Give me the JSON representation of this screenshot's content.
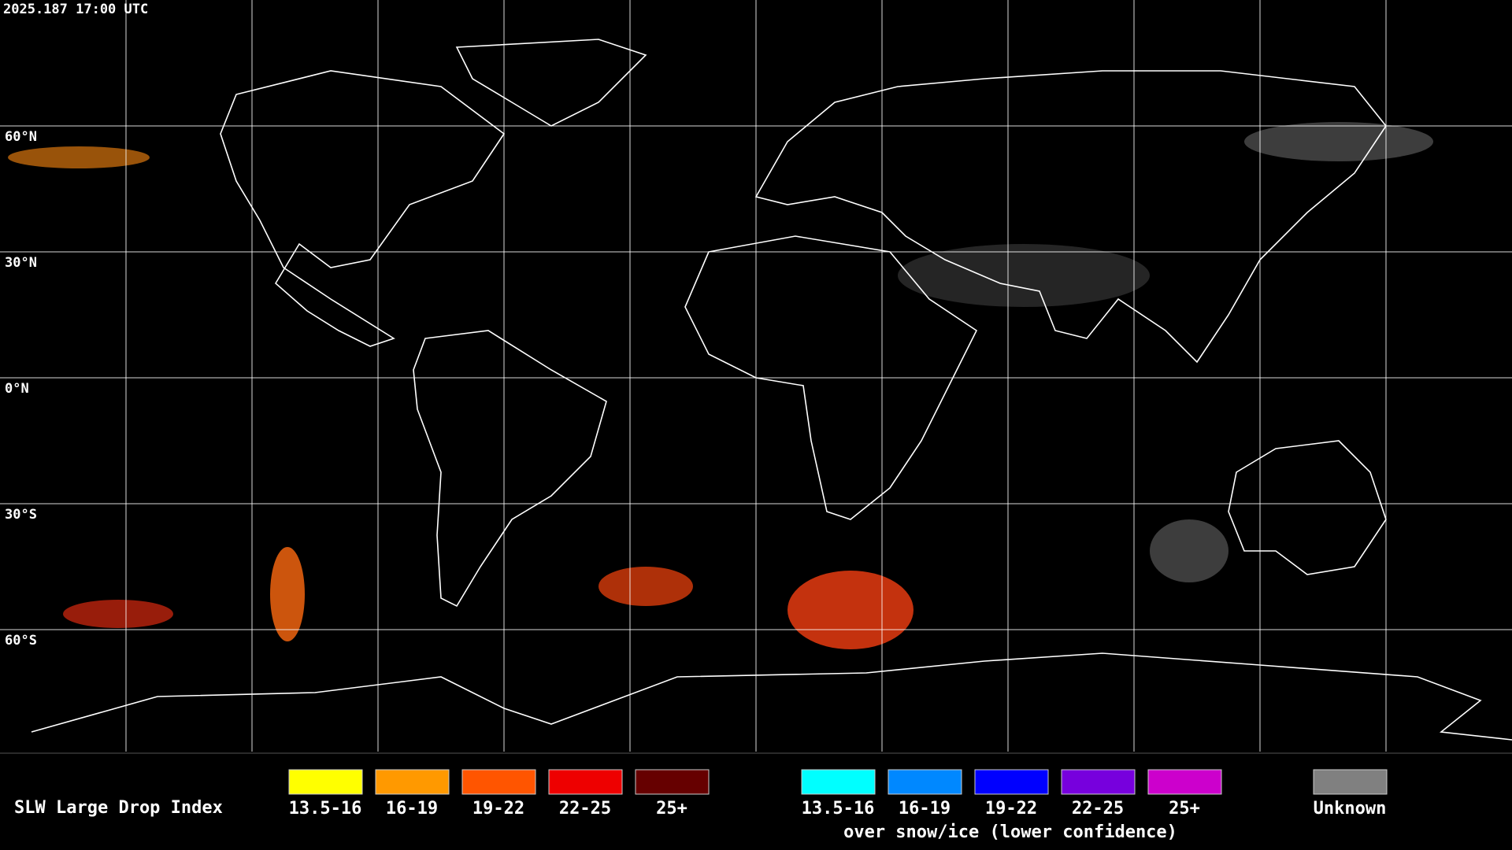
{
  "timestamp": "2025.187 17:00 UTC",
  "lat_labels": [
    "60°N",
    "30°N",
    "0°N",
    "30°S",
    "60°S"
  ],
  "legend": {
    "title": "SLW Large Drop Index",
    "groups": [
      {
        "items": [
          {
            "label": "13.5-16",
            "color": "#ffff00"
          },
          {
            "label": "16-19",
            "color": "#ff9900"
          },
          {
            "label": "19-22",
            "color": "#ff5500"
          },
          {
            "label": "22-25",
            "color": "#ee0000"
          },
          {
            "label": "25+",
            "color": "#660000"
          }
        ]
      },
      {
        "items": [
          {
            "label": "13.5-16",
            "color": "#00ffff"
          },
          {
            "label": "16-19",
            "color": "#0088ff"
          },
          {
            "label": "19-22",
            "color": "#0000ff"
          },
          {
            "label": "22-25",
            "color": "#7700dd"
          },
          {
            "label": "25+",
            "color": "#cc00cc"
          }
        ],
        "caption": "over snow/ice (lower confidence)"
      }
    ],
    "unknown": {
      "label": "Unknown",
      "color": "#808080"
    }
  }
}
